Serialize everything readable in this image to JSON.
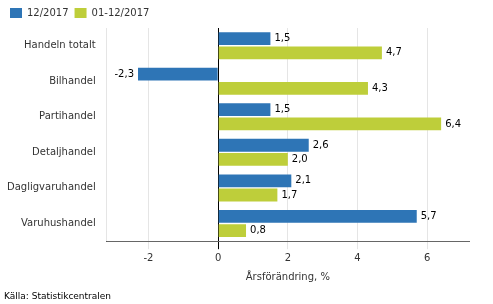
{
  "chart_data": {
    "type": "bar",
    "orientation": "horizontal",
    "categories": [
      "Varuhushandel",
      "Dagligvaruhandel",
      "Detaljhandel",
      "Partihandel",
      "Bilhandel",
      "Handeln totalt"
    ],
    "series": [
      {
        "name": "12/2017",
        "color": "#2E75B6",
        "values": [
          5.7,
          2.1,
          2.6,
          1.5,
          -2.3,
          1.5
        ],
        "value_labels": [
          "5,7",
          "2,1",
          "2,6",
          "1,5",
          "-2,3",
          "1,5"
        ]
      },
      {
        "name": "01-12/2017",
        "color": "#BECE3A",
        "values": [
          0.8,
          1.7,
          2.0,
          6.4,
          4.3,
          4.7
        ],
        "value_labels": [
          "0,8",
          "1,7",
          "2,0",
          "6,4",
          "4,3",
          "4,7"
        ]
      }
    ],
    "xlabel": "Årsförändring, %",
    "xlim": [
      -3.2,
      7.2
    ],
    "xticks": [
      -2,
      0,
      2,
      4,
      6
    ],
    "grid": true,
    "legend": "upper left",
    "data_labels": true,
    "annotations": [
      "Källa: Statistikcentralen"
    ]
  }
}
